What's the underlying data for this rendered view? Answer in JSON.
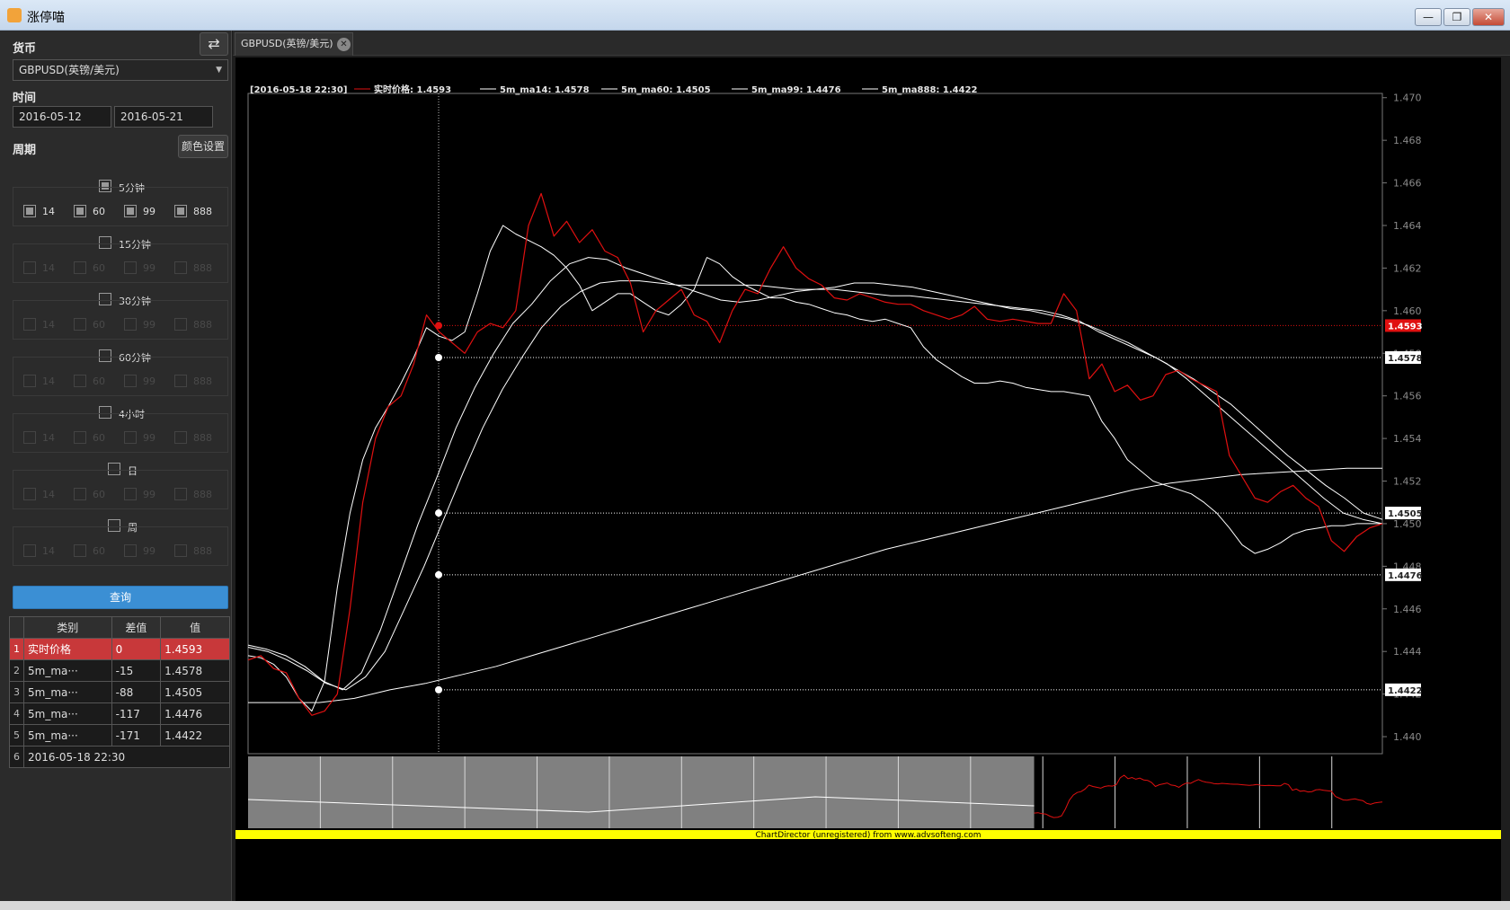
{
  "window": {
    "title": "涨停喵",
    "minimize": "—",
    "maximize": "❐",
    "close": "✕"
  },
  "sidebar": {
    "currency_label": "货币",
    "swap_icon": "⇄",
    "currency_value": "GBPUSD(英镑/美元)",
    "time_label": "时间",
    "date_start": "2016-05-12",
    "date_end": "2016-05-21",
    "period_label": "周期",
    "color_settings": "颜色设置",
    "groups": [
      {
        "title": "5分钟",
        "checked": true,
        "enabled": true
      },
      {
        "title": "15分钟",
        "checked": false,
        "enabled": false
      },
      {
        "title": "30分钟",
        "checked": false,
        "enabled": false
      },
      {
        "title": "60分钟",
        "checked": false,
        "enabled": false
      },
      {
        "title": "4小时",
        "checked": false,
        "enabled": false
      },
      {
        "title": "日",
        "checked": false,
        "enabled": false
      },
      {
        "title": "周",
        "checked": false,
        "enabled": false
      }
    ],
    "ma_options": [
      "14",
      "60",
      "99",
      "888"
    ],
    "query": "查询"
  },
  "table": {
    "headers": [
      "类别",
      "差值",
      "值"
    ],
    "rows": [
      {
        "idx": "1",
        "cat": "实时价格",
        "diff": "0",
        "val": "1.4593"
      },
      {
        "idx": "2",
        "cat": "5m_ma···",
        "diff": "-15",
        "val": "1.4578"
      },
      {
        "idx": "3",
        "cat": "5m_ma···",
        "diff": "-88",
        "val": "1.4505"
      },
      {
        "idx": "4",
        "cat": "5m_ma···",
        "diff": "-117",
        "val": "1.4476"
      },
      {
        "idx": "5",
        "cat": "5m_ma···",
        "diff": "-171",
        "val": "1.4422"
      }
    ],
    "footer_idx": "6",
    "footer_time": "2016-05-18 22:30"
  },
  "tab": {
    "label": "GBPUSD(英镑/美元)",
    "close": "✕"
  },
  "chart_data": {
    "type": "line",
    "cursor_time": "[2016-05-18 22:30]",
    "legend": [
      {
        "name": "实时价格",
        "value": "1.4593",
        "color": "#e01010"
      },
      {
        "name": "5m_ma14",
        "value": "1.4578",
        "color": "#ffffff"
      },
      {
        "name": "5m_ma60",
        "value": "1.4505",
        "color": "#ffffff"
      },
      {
        "name": "5m_ma99",
        "value": "1.4476",
        "color": "#ffffff"
      },
      {
        "name": "5m_ma888",
        "value": "1.4422",
        "color": "#ffffff"
      }
    ],
    "ylim": [
      1.4392,
      1.4702
    ],
    "yticks": [
      "1.470",
      "1.468",
      "1.466",
      "1.464",
      "1.462",
      "1.460",
      "1.458",
      "1.456",
      "1.454",
      "1.452",
      "1.450",
      "1.448",
      "1.446",
      "1.444",
      "1.442",
      "1.440"
    ],
    "markers": [
      {
        "label": "1.4593",
        "value": 1.4593,
        "color": "#e01010"
      },
      {
        "label": "1.4578",
        "value": 1.4578,
        "color": "#ffffff"
      },
      {
        "label": "1.4505",
        "value": 1.4505,
        "color": "#ffffff"
      },
      {
        "label": "1.4476",
        "value": 1.4476,
        "color": "#ffffff"
      },
      {
        "label": "1.4422",
        "value": 1.4422,
        "color": "#ffffff"
      }
    ],
    "cursor_fraction": 0.168,
    "series": [
      {
        "name": "实时价格",
        "color": "#e01010",
        "values": [
          1.4436,
          1.4438,
          1.4432,
          1.443,
          1.4418,
          1.441,
          1.4412,
          1.442,
          1.446,
          1.451,
          1.454,
          1.4555,
          1.456,
          1.4575,
          1.4598,
          1.459,
          1.4585,
          1.458,
          1.459,
          1.4594,
          1.4592,
          1.46,
          1.464,
          1.4655,
          1.4635,
          1.4642,
          1.4632,
          1.4638,
          1.4628,
          1.4625,
          1.4613,
          1.459,
          1.46,
          1.4605,
          1.461,
          1.4598,
          1.4595,
          1.4585,
          1.46,
          1.461,
          1.4608,
          1.462,
          1.463,
          1.462,
          1.4615,
          1.4612,
          1.4606,
          1.4605,
          1.4608,
          1.4606,
          1.4604,
          1.4603,
          1.4603,
          1.46,
          1.4598,
          1.4596,
          1.4598,
          1.4602,
          1.4596,
          1.4595,
          1.4596,
          1.4595,
          1.4594,
          1.4594,
          1.4608,
          1.46,
          1.4568,
          1.4575,
          1.4562,
          1.4565,
          1.4558,
          1.456,
          1.457,
          1.4572,
          1.4568,
          1.4565,
          1.4562,
          1.4532,
          1.4522,
          1.4512,
          1.451,
          1.4515,
          1.4518,
          1.4512,
          1.4508,
          1.4492,
          1.4487,
          1.4494,
          1.4498,
          1.45
        ]
      },
      {
        "name": "5m_ma14",
        "color": "#ffffff",
        "values": [
          1.4438,
          1.4437,
          1.4434,
          1.4428,
          1.4418,
          1.4412,
          1.4426,
          1.447,
          1.4505,
          1.453,
          1.4545,
          1.4555,
          1.4566,
          1.4578,
          1.4592,
          1.4588,
          1.4586,
          1.459,
          1.4608,
          1.4628,
          1.464,
          1.4636,
          1.4633,
          1.463,
          1.4626,
          1.462,
          1.4612,
          1.46,
          1.4604,
          1.4608,
          1.4608,
          1.4604,
          1.46,
          1.4598,
          1.4603,
          1.461,
          1.4625,
          1.4622,
          1.4616,
          1.4612,
          1.4609,
          1.4606,
          1.4606,
          1.4604,
          1.4603,
          1.4601,
          1.4599,
          1.4598,
          1.4596,
          1.4595,
          1.4596,
          1.4594,
          1.4592,
          1.4583,
          1.4577,
          1.4573,
          1.4569,
          1.4566,
          1.4566,
          1.4567,
          1.4566,
          1.4564,
          1.4563,
          1.4562,
          1.4562,
          1.4561,
          1.456,
          1.4548,
          1.454,
          1.453,
          1.4525,
          1.452,
          1.4518,
          1.4516,
          1.4514,
          1.451,
          1.4505,
          1.4498,
          1.449,
          1.4486,
          1.4488,
          1.4491,
          1.4495,
          1.4497,
          1.4498,
          1.4499,
          1.4499,
          1.45,
          1.45,
          1.45
        ]
      },
      {
        "name": "5m_ma60",
        "color": "#ffffff",
        "values": [
          1.4443,
          1.4441,
          1.4438,
          1.4433,
          1.4426,
          1.4422,
          1.443,
          1.445,
          1.4475,
          1.45,
          1.4522,
          1.4545,
          1.4564,
          1.458,
          1.4594,
          1.4603,
          1.4614,
          1.4622,
          1.4625,
          1.4624,
          1.462,
          1.4617,
          1.4614,
          1.4611,
          1.4608,
          1.4605,
          1.4604,
          1.4605,
          1.4607,
          1.4609,
          1.461,
          1.461,
          1.4609,
          1.4608,
          1.4607,
          1.4607,
          1.4606,
          1.4605,
          1.4604,
          1.4603,
          1.4602,
          1.4601,
          1.46,
          1.4598,
          1.4595,
          1.459,
          1.4586,
          1.4582,
          1.4578,
          1.4573,
          1.4568,
          1.4562,
          1.4556,
          1.4548,
          1.454,
          1.4532,
          1.4525,
          1.4518,
          1.4512,
          1.4505,
          1.4502
        ]
      },
      {
        "name": "5m_ma99",
        "color": "#ffffff",
        "values": [
          1.4442,
          1.444,
          1.4436,
          1.4431,
          1.4425,
          1.4422,
          1.4428,
          1.444,
          1.446,
          1.448,
          1.4502,
          1.4524,
          1.4545,
          1.4563,
          1.4578,
          1.4592,
          1.4602,
          1.4609,
          1.4613,
          1.4614,
          1.4614,
          1.4613,
          1.4612,
          1.4612,
          1.4612,
          1.4612,
          1.4612,
          1.4611,
          1.461,
          1.461,
          1.4611,
          1.4613,
          1.4613,
          1.4612,
          1.4611,
          1.4609,
          1.4607,
          1.4605,
          1.4603,
          1.4601,
          1.46,
          1.4598,
          1.4596,
          1.4593,
          1.4589,
          1.4585,
          1.458,
          1.4575,
          1.4568,
          1.456,
          1.4552,
          1.4544,
          1.4536,
          1.4528,
          1.452,
          1.4512,
          1.4505,
          1.4502,
          1.45
        ]
      },
      {
        "name": "5m_ma888",
        "color": "#ffffff",
        "values": [
          1.4416,
          1.4416,
          1.4416,
          1.4418,
          1.4422,
          1.4425,
          1.4429,
          1.4433,
          1.4438,
          1.4443,
          1.4448,
          1.4453,
          1.4458,
          1.4463,
          1.4468,
          1.4473,
          1.4478,
          1.4483,
          1.4488,
          1.4492,
          1.4496,
          1.45,
          1.4504,
          1.4508,
          1.4512,
          1.4516,
          1.4519,
          1.4521,
          1.4523,
          1.4524,
          1.4525,
          1.4526,
          1.4526
        ]
      }
    ],
    "watermark": "ChartDirector (unregistered) from www.advsofteng.com"
  }
}
